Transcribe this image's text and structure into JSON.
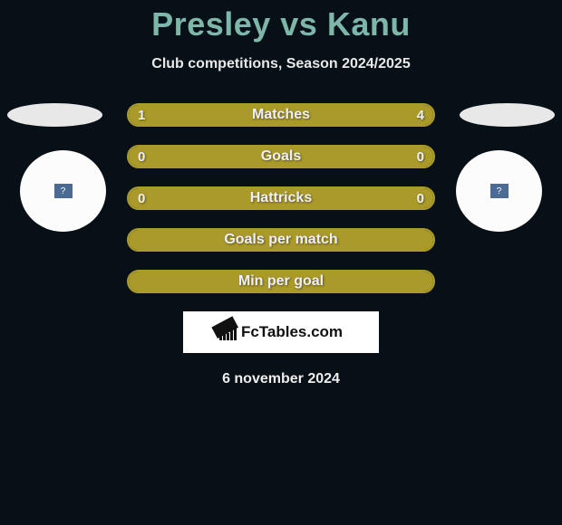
{
  "title": "Presley vs Kanu",
  "subtitle": "Club competitions, Season 2024/2025",
  "colors": {
    "background": "#061016",
    "title": "#7eb6aa",
    "bar": "#aa9a2a",
    "text_light": "#e8e8e8",
    "flag_left": "#e8e8e8",
    "flag_right": "#e8e8e8",
    "badge_bg": "#fcfcfc",
    "badge_inner": "#4b6b95",
    "logo_bg": "#ffffff"
  },
  "bars": [
    {
      "label": "Matches",
      "left": "1",
      "right": "4",
      "left_pct": 20,
      "right_pct": 80,
      "show_values": true,
      "full": false
    },
    {
      "label": "Goals",
      "left": "0",
      "right": "0",
      "left_pct": 0,
      "right_pct": 0,
      "show_values": true,
      "full": true
    },
    {
      "label": "Hattricks",
      "left": "0",
      "right": "0",
      "left_pct": 0,
      "right_pct": 0,
      "show_values": true,
      "full": true
    },
    {
      "label": "Goals per match",
      "left": "",
      "right": "",
      "left_pct": 0,
      "right_pct": 0,
      "show_values": false,
      "full": true
    },
    {
      "label": "Min per goal",
      "left": "",
      "right": "",
      "left_pct": 0,
      "right_pct": 0,
      "show_values": false,
      "full": true
    }
  ],
  "logo_text": "FcTables.com",
  "date": "6 november 2024",
  "badge_glyph": "?"
}
